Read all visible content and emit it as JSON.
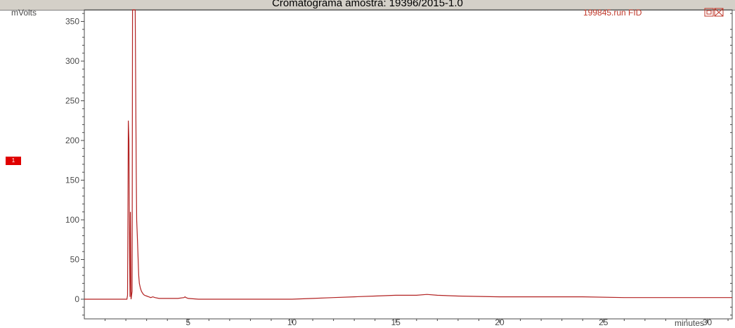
{
  "window": {
    "title": "Cromatograma amostra: 19396/2015-1.0"
  },
  "marker": {
    "label": "1",
    "color": "#e00000"
  },
  "legend": {
    "label": "199845.run FID",
    "color": "#c0392b",
    "restore_icon": "restore-icon",
    "close_icon": "close-icon"
  },
  "colors": {
    "trace": "#b22222",
    "axis": "#4a4a4a",
    "frame": "#4a4a4a",
    "titlebar": "#d4d0c8"
  },
  "chart_data": {
    "type": "line",
    "title": "Cromatograma amostra: 19396/2015-1.0",
    "xlabel": "minutes",
    "ylabel": "mVolts",
    "xlim": [
      0,
      31.2
    ],
    "ylim": [
      -25,
      370
    ],
    "xticks": [
      5,
      10,
      15,
      20,
      25,
      30
    ],
    "yticks": [
      0,
      50,
      100,
      150,
      200,
      250,
      300,
      350
    ],
    "grid": false,
    "legend_position": "top-right",
    "series": [
      {
        "name": "199845.run FID",
        "x": [
          0,
          2.0,
          2.05,
          2.08,
          2.1,
          2.12,
          2.15,
          2.18,
          2.2,
          2.22,
          2.25,
          2.3,
          2.32,
          2.35,
          2.38,
          2.4,
          2.45,
          2.5,
          2.52,
          2.55,
          2.58,
          2.6,
          2.62,
          2.65,
          2.7,
          2.75,
          2.8,
          2.85,
          2.9,
          3.0,
          3.1,
          3.2,
          3.3,
          3.4,
          3.6,
          3.8,
          4.0,
          4.5,
          4.8,
          4.85,
          4.9,
          5.0,
          5.5,
          6,
          8,
          10,
          11,
          12,
          13,
          14,
          15,
          16,
          16.5,
          17,
          18,
          20,
          22,
          24,
          26,
          28,
          30,
          31.2
        ],
        "y": [
          0,
          0,
          0,
          5,
          110,
          225,
          200,
          60,
          3,
          110,
          0,
          10,
          380,
          380,
          380,
          380,
          380,
          160,
          100,
          80,
          60,
          45,
          30,
          20,
          14,
          10,
          8,
          6,
          5,
          4,
          3,
          2,
          3,
          2,
          1,
          1,
          1,
          1,
          2,
          3,
          2,
          1,
          0,
          0,
          0,
          0,
          1,
          2,
          3,
          4,
          5,
          5,
          6,
          5,
          4,
          3,
          3,
          3,
          2,
          2,
          2,
          2
        ]
      }
    ]
  }
}
